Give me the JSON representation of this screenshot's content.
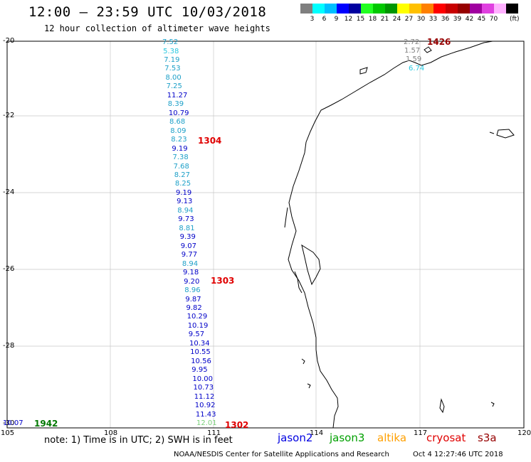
{
  "header": {
    "title": "12:00 — 23:59 UTC 10/03/2018",
    "subtitle": "12 hour collection of altimeter wave heights"
  },
  "color_scale": {
    "unit": "(ft)",
    "colors": [
      "#7f7f7f",
      "#00ffff",
      "#00bfff",
      "#0000ff",
      "#0000a0",
      "#22ff22",
      "#00c800",
      "#009600",
      "#ffff00",
      "#ffc000",
      "#ff8000",
      "#ff0000",
      "#c80000",
      "#960000",
      "#a000a0",
      "#e040e0",
      "#ffb0ff",
      "#000000"
    ],
    "labels": [
      "3",
      "6",
      "9",
      "12",
      "15",
      "18",
      "21",
      "24",
      "27",
      "30",
      "33",
      "36",
      "39",
      "42",
      "45",
      "70"
    ]
  },
  "axes": {
    "lat_labels": [
      "-20",
      "-22",
      "-24",
      "-26",
      "-28",
      "-30"
    ],
    "lon_labels": [
      "105",
      "108",
      "111",
      "114",
      "117",
      "120"
    ]
  },
  "track_values": [
    {
      "v": "7.52",
      "c": "#1ea0c8"
    },
    {
      "v": "5.38",
      "c": "#28c8e0"
    },
    {
      "v": "7.19",
      "c": "#1ea0c8"
    },
    {
      "v": "7.53",
      "c": "#1ea0c8"
    },
    {
      "v": "8.00",
      "c": "#1ea0c8"
    },
    {
      "v": "7.25",
      "c": "#1ea0c8"
    },
    {
      "v": "11.27",
      "c": "#0000c8"
    },
    {
      "v": "8.39",
      "c": "#1ea0c8"
    },
    {
      "v": "10.79",
      "c": "#0000c8"
    },
    {
      "v": "8.68",
      "c": "#1ea0c8"
    },
    {
      "v": "8.09",
      "c": "#1ea0c8"
    },
    {
      "v": "8.23",
      "c": "#1ea0c8"
    },
    {
      "v": "9.19",
      "c": "#0000c8"
    },
    {
      "v": "7.38",
      "c": "#1ea0c8"
    },
    {
      "v": "7.68",
      "c": "#1ea0c8"
    },
    {
      "v": "8.27",
      "c": "#1ea0c8"
    },
    {
      "v": "8.25",
      "c": "#1ea0c8"
    },
    {
      "v": "9.19",
      "c": "#0000c8"
    },
    {
      "v": "9.13",
      "c": "#0000c8"
    },
    {
      "v": "8.94",
      "c": "#1ea0c8"
    },
    {
      "v": "9.73",
      "c": "#0000c8"
    },
    {
      "v": "8.81",
      "c": "#1ea0c8"
    },
    {
      "v": "9.39",
      "c": "#0000c8"
    },
    {
      "v": "9.07",
      "c": "#0000c8"
    },
    {
      "v": "9.77",
      "c": "#0000c8"
    },
    {
      "v": "8.94",
      "c": "#1ea0c8"
    },
    {
      "v": "9.18",
      "c": "#0000c8"
    },
    {
      "v": "9.20",
      "c": "#0000c8"
    },
    {
      "v": "8.96",
      "c": "#1ea0c8"
    },
    {
      "v": "9.87",
      "c": "#0000c8"
    },
    {
      "v": "9.82",
      "c": "#0000c8"
    },
    {
      "v": "10.29",
      "c": "#0000c8"
    },
    {
      "v": "10.19",
      "c": "#0000c8"
    },
    {
      "v": "9.57",
      "c": "#0000c8"
    },
    {
      "v": "10.34",
      "c": "#0000c8"
    },
    {
      "v": "10.55",
      "c": "#0000c8"
    },
    {
      "v": "10.56",
      "c": "#0000c8"
    },
    {
      "v": "9.95",
      "c": "#0000c8"
    },
    {
      "v": "10.00",
      "c": "#0000c8"
    },
    {
      "v": "10.73",
      "c": "#0000c8"
    },
    {
      "v": "11.12",
      "c": "#0000c8"
    },
    {
      "v": "10.92",
      "c": "#0000c8"
    },
    {
      "v": "11.43",
      "c": "#0000c8"
    },
    {
      "v": "12.01",
      "c": "#7ad07a"
    }
  ],
  "coast_values": [
    {
      "v": "2.72",
      "c": "#7f7f7f"
    },
    {
      "v": "1.57",
      "c": "#7f7f7f"
    },
    {
      "v": "1.59",
      "c": "#7f7f7f"
    },
    {
      "v": "6.74",
      "c": "#28c8e0"
    }
  ],
  "corner_value": {
    "v": "10.07",
    "c": "#0000c8"
  },
  "time_labels": [
    {
      "t": "1426",
      "c": "#960000"
    },
    {
      "t": "1304",
      "c": "#e00000"
    },
    {
      "t": "1303",
      "c": "#e00000"
    },
    {
      "t": "1302",
      "c": "#e00000"
    },
    {
      "t": "1942",
      "c": "#007800"
    }
  ],
  "note": "note: 1) Time is in UTC; 2) SWH is in feet",
  "legend": [
    {
      "name": "jason2",
      "color": "#0000e0"
    },
    {
      "name": "jason3",
      "color": "#00a000"
    },
    {
      "name": "altika",
      "color": "#ffa000"
    },
    {
      "name": "cryosat",
      "color": "#e00000"
    },
    {
      "name": "s3a",
      "color": "#960000"
    }
  ],
  "footer": {
    "credit": "NOAA/NESDIS Center for Satellite Applications and Research",
    "timestamp": "Oct  4 12:27:46 UTC 2018"
  }
}
